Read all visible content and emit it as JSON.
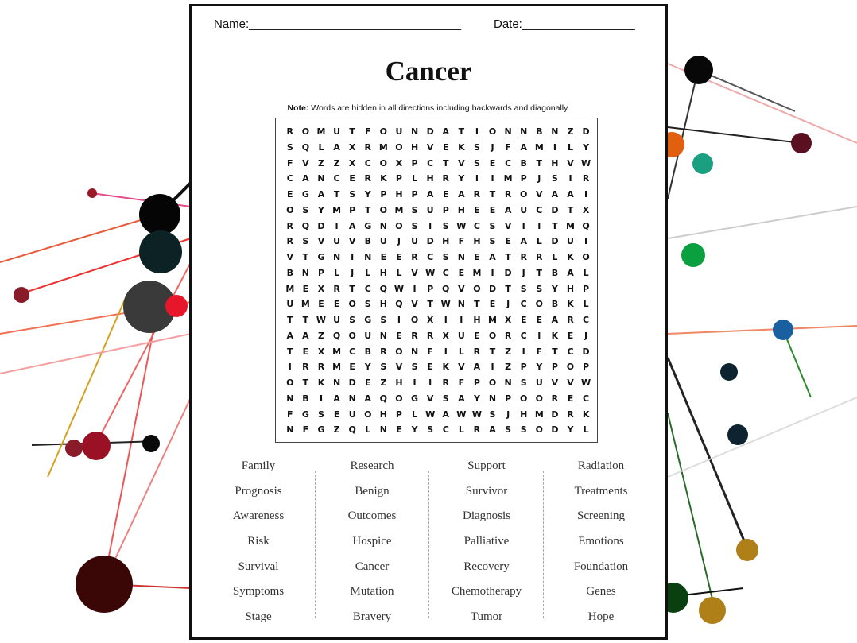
{
  "header": {
    "name_label": "Name:________________________________",
    "date_label": "Date:_________________"
  },
  "title": "Cancer",
  "note": {
    "bold": "Note:",
    "text": " Words are hidden in all directions including backwards and diagonally."
  },
  "grid": [
    "ROMUTFOUNDATIONNBNZD",
    "SQLAXRMOHVEKSJFAMILY",
    "FVZZXCOXPCTVSECBTHVW",
    "CANCERKPLHRYIIMPJSIR",
    "EGATSYPHPAEARTROVAAI",
    "OSYMPTOMSUPHEEAUCDTX",
    "RQDIAGNOSISWCSVIITMQ",
    "RSVUVBUJUDHFHSEALDUI",
    "VTGNINEERCSNEATRRLKO",
    "BNPLJLHLVWCEMIDJTBAL",
    "MEXRTCQWIPQVODTSSYHP",
    "UMEEOSHQVTWNTEJCOBKL",
    "TTWUSGSIOXIIHMXEEARC",
    "AAZQOUNERRXUEORCIKEJ",
    "TEXMCBRONFILRTZIFTCD",
    "IRRMEYSVSEKVAIZPYPOP",
    "OTKNDEZHIIRFPONSUVVW",
    "NBIANAQOGVSAYNPOOREC",
    "FGSEUOHPLWAWWSJHMDRK",
    "NFGZQLNEYSCLRASSODYL"
  ],
  "word_columns": [
    [
      "Family",
      "Prognosis",
      "Awareness",
      "Risk",
      "Survival",
      "Symptoms",
      "Stage"
    ],
    [
      "Research",
      "Benign",
      "Outcomes",
      "Hospice",
      "Cancer",
      "Mutation",
      "Bravery"
    ],
    [
      "Support",
      "Survivor",
      "Diagnosis",
      "Palliative",
      "Recovery",
      "Chemotherapy",
      "Tumor"
    ],
    [
      "Radiation",
      "Treatments",
      "Screening",
      "Emotions",
      "Foundation",
      "Genes",
      "Hope"
    ]
  ]
}
